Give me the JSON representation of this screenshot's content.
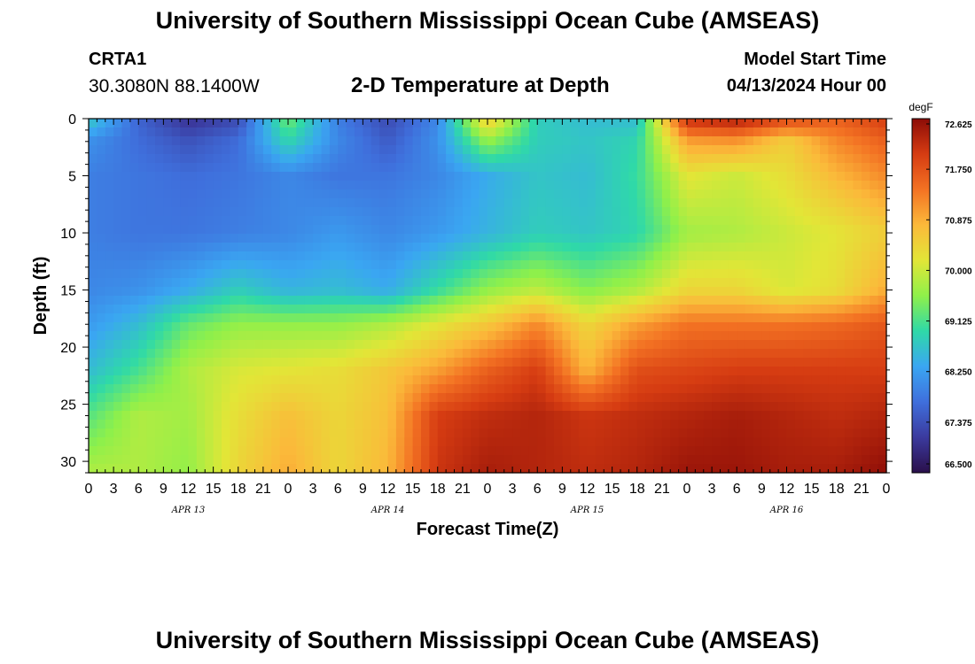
{
  "header": {
    "title": "University of Southern Mississippi Ocean Cube (AMSEAS)",
    "title_repeat": "University of Southern Mississippi Ocean Cube (AMSEAS)",
    "station_id": "CRTA1",
    "station_coords": "30.3080N  88.1400W",
    "plot_title": "2-D Temperature at Depth",
    "model_start_label": "Model Start Time",
    "model_start_value": "04/13/2024 Hour 00"
  },
  "chart_data": {
    "type": "heatmap",
    "title": "2-D Temperature at Depth",
    "xlabel": "Forecast Time(Z)",
    "ylabel": "Depth (ft)",
    "x_range_hours": [
      0,
      96
    ],
    "ylim": [
      31,
      0
    ],
    "x_tick_labels": [
      "0",
      "3",
      "6",
      "9",
      "12",
      "15",
      "18",
      "21",
      "0",
      "3",
      "6",
      "9",
      "12",
      "15",
      "18",
      "21",
      "0",
      "3",
      "6",
      "9",
      "12",
      "15",
      "18",
      "21",
      "0",
      "3",
      "6",
      "9",
      "12",
      "15",
      "18",
      "21",
      "0"
    ],
    "y_ticks": [
      0,
      5,
      10,
      15,
      20,
      25,
      30
    ],
    "day_labels": [
      {
        "hour": 12,
        "label": "APR 13"
      },
      {
        "hour": 36,
        "label": "APR 14"
      },
      {
        "hour": 60,
        "label": "APR 15"
      },
      {
        "hour": 84,
        "label": "APR 16"
      }
    ],
    "colorbar": {
      "units": "degF",
      "min": 66.5,
      "max": 72.625,
      "tick_labels": [
        "72.625",
        "71.750",
        "70.875",
        "70.000",
        "69.125",
        "68.250",
        "67.375",
        "66.500"
      ],
      "colors": [
        "#2a0f4a",
        "#3b3a9e",
        "#3f6fdc",
        "#3aa6f2",
        "#2fd9a8",
        "#8ff04a",
        "#e2e637",
        "#fbb93a",
        "#f37223",
        "#d63c12",
        "#8c0c07"
      ]
    },
    "grid": {
      "hours": [
        0,
        6,
        12,
        18,
        24,
        30,
        36,
        42,
        48,
        54,
        60,
        66,
        72,
        78,
        84,
        90,
        96
      ],
      "depths_ft": [
        0,
        2,
        5,
        10,
        15,
        18,
        22,
        26,
        31
      ],
      "values_degF": [
        [
          68.8,
          67.6,
          67.0,
          67.3,
          69.4,
          67.9,
          67.3,
          68.0,
          70.6,
          68.8,
          68.6,
          68.6,
          72.2,
          72.4,
          71.9,
          71.6,
          72.0
        ],
        [
          68.1,
          67.7,
          67.4,
          67.7,
          68.9,
          68.0,
          67.5,
          68.1,
          69.6,
          68.8,
          68.7,
          68.9,
          71.0,
          71.1,
          70.5,
          71.2,
          71.6
        ],
        [
          67.9,
          67.8,
          67.7,
          67.8,
          68.0,
          67.8,
          67.8,
          68.0,
          68.4,
          68.7,
          68.6,
          69.0,
          70.2,
          70.0,
          70.3,
          70.8,
          71.2
        ],
        [
          67.9,
          67.8,
          67.8,
          67.9,
          68.0,
          68.2,
          68.0,
          68.2,
          68.5,
          68.8,
          68.7,
          68.9,
          69.7,
          69.8,
          70.0,
          70.2,
          70.5
        ],
        [
          68.0,
          68.1,
          68.4,
          68.8,
          68.5,
          68.6,
          68.4,
          69.0,
          69.6,
          69.9,
          69.5,
          69.8,
          70.4,
          70.4,
          70.1,
          70.3,
          70.9
        ],
        [
          68.2,
          68.6,
          69.3,
          69.6,
          69.6,
          69.6,
          69.8,
          70.2,
          70.6,
          71.2,
          70.4,
          71.0,
          71.4,
          71.4,
          71.4,
          71.5,
          71.7
        ],
        [
          68.6,
          69.1,
          69.8,
          70.1,
          70.2,
          70.3,
          70.6,
          71.0,
          71.6,
          72.0,
          70.8,
          71.8,
          71.9,
          72.0,
          72.0,
          72.0,
          72.0
        ],
        [
          69.2,
          69.8,
          69.7,
          70.3,
          70.7,
          70.4,
          70.7,
          72.0,
          72.2,
          72.3,
          72.1,
          72.2,
          72.3,
          72.4,
          72.3,
          72.2,
          72.3
        ],
        [
          69.8,
          69.8,
          69.6,
          70.4,
          70.9,
          70.4,
          70.8,
          72.1,
          72.4,
          72.3,
          72.2,
          72.3,
          72.5,
          72.5,
          72.4,
          72.4,
          72.6
        ]
      ]
    }
  }
}
